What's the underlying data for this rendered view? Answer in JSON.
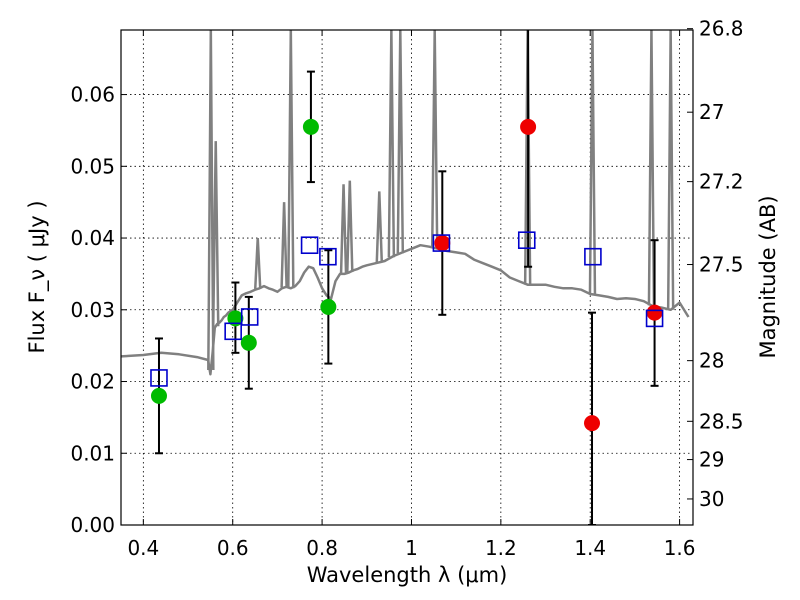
{
  "chart_data": {
    "type": "scatter",
    "xlabel": "Wavelength  λ (μm)",
    "ylabel": "Flux  F_ν  ( μJy )",
    "ylabel_right": "Magnitude (AB)",
    "xlim": [
      0.35,
      1.63
    ],
    "ylim": [
      0.0,
      0.069
    ],
    "grid": true,
    "x_ticks": [
      {
        "value": 0.4,
        "label": "0.4"
      },
      {
        "value": 0.6,
        "label": "0.6"
      },
      {
        "value": 0.8,
        "label": "0.8"
      },
      {
        "value": 1.0,
        "label": "1"
      },
      {
        "value": 1.2,
        "label": "1.2"
      },
      {
        "value": 1.4,
        "label": "1.4"
      },
      {
        "value": 1.6,
        "label": "1.6"
      }
    ],
    "y_ticks": [
      {
        "value": 0.0,
        "label": "0.00"
      },
      {
        "value": 0.01,
        "label": "0.01"
      },
      {
        "value": 0.02,
        "label": "0.02"
      },
      {
        "value": 0.03,
        "label": "0.03"
      },
      {
        "value": 0.04,
        "label": "0.04"
      },
      {
        "value": 0.05,
        "label": "0.05"
      },
      {
        "value": 0.06,
        "label": "0.06"
      }
    ],
    "mag_ticks": [
      {
        "value": 26.8,
        "label": "26.8"
      },
      {
        "value": 27.0,
        "label": "27"
      },
      {
        "value": 27.2,
        "label": "27.2"
      },
      {
        "value": 27.5,
        "label": "27.5"
      },
      {
        "value": 28.0,
        "label": "28"
      },
      {
        "value": 28.5,
        "label": "28.5"
      },
      {
        "value": 29.0,
        "label": "29"
      },
      {
        "value": 30.0,
        "label": "30"
      }
    ],
    "colors": {
      "template": "#808080",
      "optical": "#00bb00",
      "infrared": "#ee0000",
      "model": "#0000cc",
      "errorbar": "#000000",
      "grid": "#000000"
    },
    "series": [
      {
        "marker": "circle",
        "color": "#00bb00",
        "points": [
          {
            "x": 0.435,
            "y": 0.018,
            "yerr": [
              0.008,
              0.008
            ]
          },
          {
            "x": 0.606,
            "y": 0.0288,
            "yerr": [
              0.0048,
              0.005
            ]
          },
          {
            "x": 0.636,
            "y": 0.0254,
            "yerr": [
              0.0064,
              0.0064
            ]
          },
          {
            "x": 0.775,
            "y": 0.0555,
            "yerr": [
              0.0077,
              0.0077
            ]
          },
          {
            "x": 0.814,
            "y": 0.0304,
            "yerr": [
              0.0079,
              0.0079
            ]
          }
        ]
      },
      {
        "marker": "circle",
        "color": "#ee0000",
        "points": [
          {
            "x": 1.069,
            "y": 0.0393,
            "yerr": [
              0.01,
              0.01
            ]
          },
          {
            "x": 1.261,
            "y": 0.0555,
            "yerr": [
              0.0195,
              0.015
            ]
          },
          {
            "x": 1.404,
            "y": 0.0142,
            "yerr": [
              0.0142,
              0.0154
            ]
          },
          {
            "x": 1.544,
            "y": 0.0296,
            "yerr": [
              0.0102,
              0.0101
            ]
          }
        ]
      },
      {
        "marker": "square",
        "color": "#0000cc",
        "points": [
          {
            "x": 0.435,
            "y": 0.0205
          },
          {
            "x": 0.601,
            "y": 0.027
          },
          {
            "x": 0.638,
            "y": 0.029
          },
          {
            "x": 0.772,
            "y": 0.039
          },
          {
            "x": 0.813,
            "y": 0.0374
          },
          {
            "x": 1.067,
            "y": 0.0393
          },
          {
            "x": 1.258,
            "y": 0.0397
          },
          {
            "x": 1.406,
            "y": 0.0374
          },
          {
            "x": 1.544,
            "y": 0.0288
          }
        ]
      }
    ],
    "template": {
      "x": [
        0.35,
        0.4,
        0.44,
        0.48,
        0.52,
        0.545,
        0.55,
        0.555,
        0.56,
        0.565,
        0.57,
        0.575,
        0.58,
        0.585,
        0.59,
        0.6,
        0.61,
        0.62,
        0.63,
        0.64,
        0.65,
        0.66,
        0.67,
        0.68,
        0.69,
        0.7,
        0.71,
        0.72,
        0.73,
        0.74,
        0.75,
        0.76,
        0.77,
        0.78,
        0.79,
        0.8,
        0.81,
        0.82,
        0.83,
        0.84,
        0.85,
        0.86,
        0.87,
        0.88,
        0.89,
        0.9,
        0.92,
        0.94,
        0.96,
        0.98,
        1.0,
        1.02,
        1.04,
        1.06,
        1.08,
        1.1,
        1.12,
        1.14,
        1.16,
        1.18,
        1.2,
        1.22,
        1.24,
        1.26,
        1.28,
        1.3,
        1.32,
        1.34,
        1.36,
        1.38,
        1.4,
        1.42,
        1.44,
        1.46,
        1.48,
        1.5,
        1.52,
        1.54,
        1.56,
        1.58,
        1.6,
        1.62
      ],
      "y": [
        0.0235,
        0.0237,
        0.024,
        0.0238,
        0.0234,
        0.023,
        0.021,
        0.024,
        0.0275,
        0.028,
        0.0282,
        0.0285,
        0.029,
        0.0292,
        0.0296,
        0.03,
        0.031,
        0.032,
        0.0323,
        0.0325,
        0.0328,
        0.033,
        0.0333,
        0.033,
        0.0328,
        0.0325,
        0.033,
        0.0332,
        0.033,
        0.0333,
        0.034,
        0.0352,
        0.036,
        0.0358,
        0.0345,
        0.033,
        0.032,
        0.0315,
        0.034,
        0.035,
        0.035,
        0.0352,
        0.0355,
        0.0357,
        0.036,
        0.0362,
        0.0365,
        0.0368,
        0.0375,
        0.038,
        0.0385,
        0.039,
        0.0388,
        0.0385,
        0.0382,
        0.038,
        0.0378,
        0.037,
        0.0365,
        0.036,
        0.0355,
        0.0345,
        0.034,
        0.0335,
        0.0335,
        0.0335,
        0.0332,
        0.033,
        0.033,
        0.0328,
        0.0322,
        0.032,
        0.0318,
        0.0315,
        0.0316,
        0.0315,
        0.0312,
        0.0305,
        0.0303,
        0.03,
        0.031,
        0.029
      ],
      "lines": [
        {
          "x": 0.551,
          "y": 0.069
        },
        {
          "x": 0.562,
          "y": 0.0535
        },
        {
          "x": 0.656,
          "y": 0.04
        },
        {
          "x": 0.715,
          "y": 0.045
        },
        {
          "x": 0.73,
          "y": 0.069
        },
        {
          "x": 0.848,
          "y": 0.0475
        },
        {
          "x": 0.862,
          "y": 0.048
        },
        {
          "x": 0.928,
          "y": 0.0465
        },
        {
          "x": 0.955,
          "y": 0.069
        },
        {
          "x": 0.975,
          "y": 0.069
        },
        {
          "x": 1.052,
          "y": 0.069
        },
        {
          "x": 1.26,
          "y": 0.069
        },
        {
          "x": 1.405,
          "y": 0.069
        },
        {
          "x": 1.537,
          "y": 0.069
        },
        {
          "x": 1.58,
          "y": 0.069
        }
      ]
    }
  }
}
